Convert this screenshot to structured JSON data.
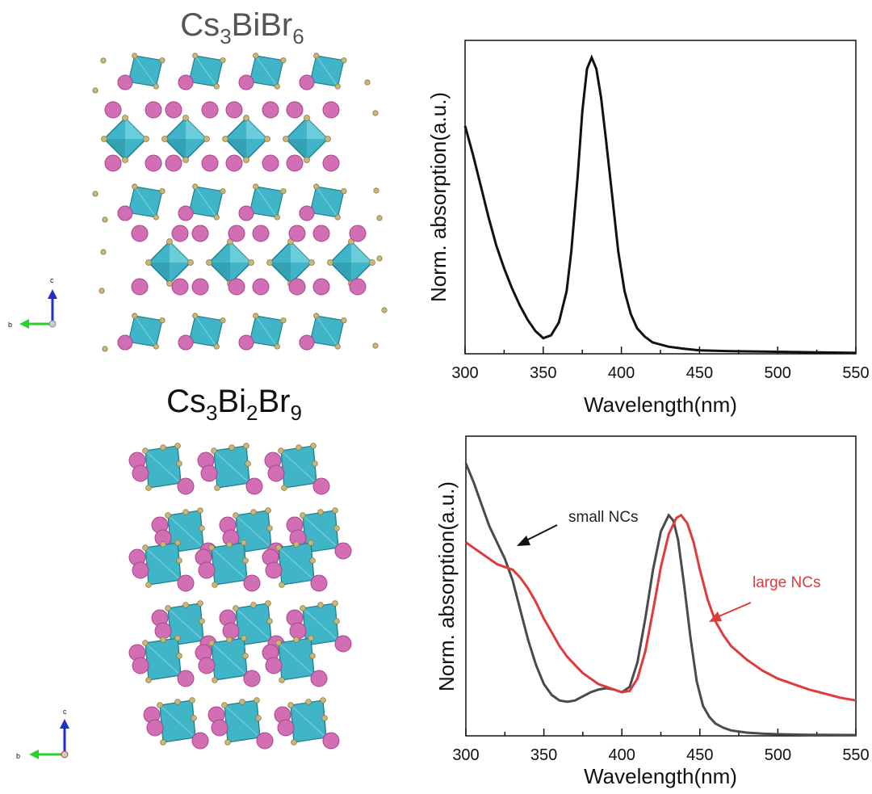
{
  "structures": [
    {
      "formula": {
        "base1": "Cs",
        "sub1": "3",
        "base2": "BiBr",
        "sub2": "6"
      },
      "axes": {
        "vertical": "c",
        "horizontal": "b"
      }
    },
    {
      "formula": {
        "base1": "Cs",
        "sub1": "3",
        "base2": "Bi",
        "sub2": "2",
        "base3": "Br",
        "sub3": "9"
      },
      "axes": {
        "vertical": "c",
        "horizontal": "b"
      }
    }
  ],
  "colors": {
    "octahedron": "#3fb5c7",
    "octahedron_dark": "#1f7f91",
    "cs_atom": "#d26fb4",
    "br_atom": "#c9b77a",
    "black_curve": "#111111",
    "gray_curve": "#4a4a4a",
    "red_curve": "#e03a3a"
  },
  "chart_data": [
    {
      "type": "line",
      "title": "",
      "xlabel": "Wavelength(nm)",
      "ylabel": "Norm. absorption(a.u.)",
      "xlim": [
        300,
        550
      ],
      "ylim": [
        0,
        1.1
      ],
      "xticks": [
        "300",
        "350",
        "400",
        "450",
        "500",
        "550"
      ],
      "series": [
        {
          "name": "Cs3BiBr6",
          "color": "#111111",
          "x": [
            300,
            305,
            310,
            315,
            320,
            325,
            330,
            335,
            340,
            345,
            350,
            355,
            360,
            365,
            368,
            372,
            375,
            378,
            381,
            384,
            387,
            390,
            394,
            398,
            402,
            406,
            410,
            415,
            420,
            430,
            440,
            450,
            470,
            500,
            525,
            550
          ],
          "y": [
            0.8,
            0.7,
            0.59,
            0.48,
            0.38,
            0.3,
            0.23,
            0.17,
            0.12,
            0.08,
            0.055,
            0.065,
            0.11,
            0.22,
            0.36,
            0.62,
            0.85,
            1.0,
            1.04,
            1.0,
            0.9,
            0.76,
            0.56,
            0.36,
            0.22,
            0.14,
            0.09,
            0.06,
            0.04,
            0.025,
            0.018,
            0.012,
            0.009,
            0.007,
            0.005,
            0.003
          ]
        }
      ]
    },
    {
      "type": "line",
      "title": "",
      "xlabel": "Wavelength(nm)",
      "ylabel": "Norm. absorption(a.u.)",
      "xlim": [
        300,
        550
      ],
      "ylim": [
        0,
        1.1
      ],
      "xticks": [
        "300",
        "350",
        "400",
        "450",
        "500",
        "550"
      ],
      "annotations": [
        {
          "text": "small NCs",
          "color": "#222222"
        },
        {
          "text": "large NCs",
          "color": "#e03a3a"
        }
      ],
      "series": [
        {
          "name": "small NCs",
          "color": "#4a4a4a",
          "x": [
            300,
            305,
            310,
            315,
            320,
            325,
            330,
            335,
            340,
            345,
            350,
            355,
            360,
            365,
            370,
            375,
            380,
            385,
            390,
            395,
            400,
            405,
            410,
            415,
            420,
            425,
            430,
            433,
            436,
            440,
            444,
            448,
            452,
            456,
            460,
            465,
            470,
            480,
            490,
            500,
            520,
            550
          ],
          "y": [
            1.0,
            0.93,
            0.85,
            0.77,
            0.71,
            0.65,
            0.57,
            0.46,
            0.35,
            0.26,
            0.19,
            0.15,
            0.13,
            0.125,
            0.13,
            0.145,
            0.16,
            0.17,
            0.175,
            0.17,
            0.16,
            0.18,
            0.27,
            0.43,
            0.61,
            0.75,
            0.81,
            0.79,
            0.72,
            0.55,
            0.36,
            0.2,
            0.11,
            0.07,
            0.045,
            0.03,
            0.02,
            0.012,
            0.008,
            0.006,
            0.004,
            0.003
          ]
        },
        {
          "name": "large NCs",
          "color": "#e03a3a",
          "x": [
            300,
            305,
            310,
            315,
            320,
            325,
            330,
            335,
            340,
            345,
            350,
            355,
            360,
            365,
            370,
            375,
            380,
            385,
            390,
            395,
            400,
            405,
            410,
            415,
            420,
            425,
            430,
            435,
            438,
            442,
            446,
            450,
            455,
            460,
            465,
            470,
            480,
            490,
            500,
            510,
            520,
            530,
            540,
            550
          ],
          "y": [
            0.71,
            0.69,
            0.67,
            0.65,
            0.63,
            0.62,
            0.61,
            0.58,
            0.54,
            0.49,
            0.43,
            0.38,
            0.33,
            0.29,
            0.26,
            0.23,
            0.21,
            0.19,
            0.18,
            0.17,
            0.16,
            0.165,
            0.21,
            0.31,
            0.46,
            0.62,
            0.74,
            0.8,
            0.81,
            0.78,
            0.71,
            0.61,
            0.5,
            0.42,
            0.37,
            0.33,
            0.28,
            0.24,
            0.21,
            0.19,
            0.17,
            0.155,
            0.14,
            0.13
          ]
        }
      ]
    }
  ]
}
